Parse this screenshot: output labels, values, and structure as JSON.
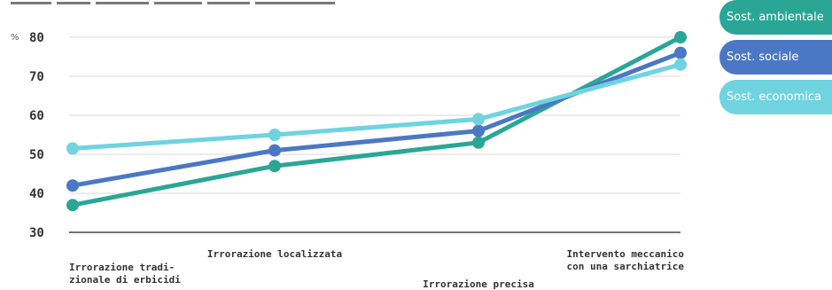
{
  "chart_data": {
    "type": "line",
    "ylabel": "%",
    "ylim": [
      30,
      80
    ],
    "yticks": [
      30,
      40,
      50,
      60,
      70,
      80
    ],
    "categories": [
      "Irrorazione tradi-\nzionale di erbicidi",
      "Irrorazione localizzata",
      "Irrorazione precisa",
      "Intervento meccanico\ncon una sarchiatrice"
    ],
    "series": [
      {
        "name": "Sost. ambientale",
        "color": "#2aa697",
        "values": [
          37,
          47,
          53,
          80
        ]
      },
      {
        "name": "Sost. sociale",
        "color": "#4b78c4",
        "values": [
          42,
          51,
          56,
          76
        ]
      },
      {
        "name": "Sost. economica",
        "color": "#6fd3e0",
        "values": [
          51.5,
          55,
          59,
          73
        ]
      }
    ],
    "grid": true,
    "legend_position": "right"
  }
}
